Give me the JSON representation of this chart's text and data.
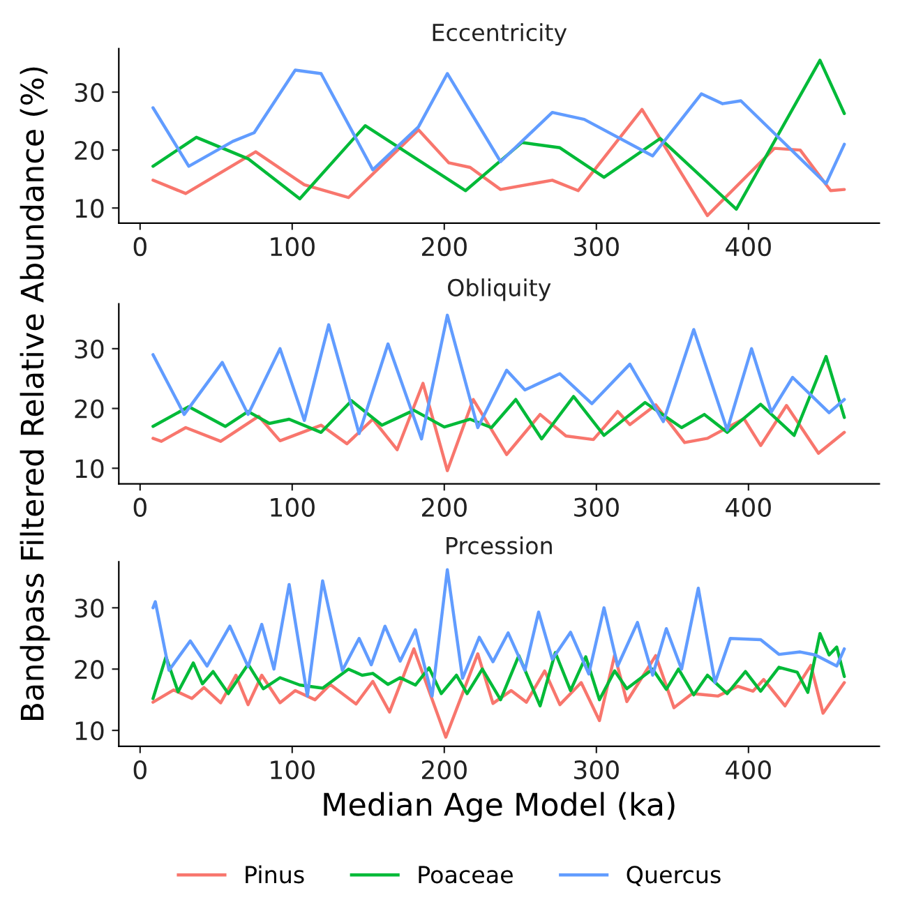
{
  "chart_data": [
    {
      "type": "line",
      "title": "Eccentricity",
      "xlim": [
        -14,
        486
      ],
      "ylim": [
        7.4,
        37.5
      ],
      "xticks": [
        0,
        100,
        200,
        300,
        400
      ],
      "yticks": [
        10,
        20,
        30
      ],
      "grid": false,
      "legend": "bottom",
      "series": [
        {
          "name": "Pinus",
          "color": "#f8766d",
          "x": [
            8.5,
            30,
            76,
            108,
            137,
            183,
            203,
            217,
            237,
            271,
            288,
            330,
            373,
            417,
            434,
            454,
            463
          ],
          "values": [
            14.8,
            12.5,
            19.7,
            14,
            11.8,
            23.5,
            17.8,
            17,
            13.2,
            14.8,
            13,
            27,
            8.7,
            20.3,
            20,
            13,
            13.2
          ]
        },
        {
          "name": "Poaceae",
          "color": "#00ba38",
          "x": [
            8.5,
            37,
            71,
            105,
            148,
            214,
            251,
            276,
            305,
            342,
            392,
            447,
            463
          ],
          "values": [
            17.2,
            22.2,
            18.5,
            11.6,
            24.2,
            13,
            21.3,
            20.4,
            15.3,
            22,
            9.8,
            35.5,
            26.3
          ]
        },
        {
          "name": "Quercus",
          "color": "#619cff",
          "x": [
            8.5,
            32,
            61,
            75,
            102,
            119,
            153,
            183,
            202,
            237,
            271,
            292,
            337,
            369,
            383,
            395,
            451,
            463
          ],
          "values": [
            27.3,
            17.2,
            21.5,
            23,
            33.8,
            33.2,
            16.6,
            24,
            33.2,
            18,
            26.5,
            25.3,
            19,
            29.7,
            28,
            28.5,
            14.2,
            21
          ]
        }
      ]
    },
    {
      "type": "line",
      "title": "Obliquity",
      "ylabel": "Bandpass Filtered Relative Abundance (%)",
      "xlim": [
        -14,
        486
      ],
      "ylim": [
        7.4,
        37.5
      ],
      "xticks": [
        0,
        100,
        200,
        300,
        400
      ],
      "yticks": [
        10,
        20,
        30
      ],
      "grid": false,
      "legend": "bottom",
      "series": [
        {
          "name": "Pinus",
          "color": "#f8766d",
          "x": [
            8.5,
            14,
            30,
            53,
            78,
            92,
            119,
            136,
            153,
            169,
            186,
            202,
            219,
            241,
            263,
            280,
            298,
            314,
            322,
            339,
            358,
            373,
            397,
            408,
            425,
            446,
            463
          ],
          "values": [
            15,
            14.5,
            16.8,
            14.5,
            18.7,
            14.6,
            17.2,
            14.1,
            18.2,
            13.1,
            24.2,
            9.6,
            21.5,
            12.3,
            19,
            15.4,
            14.8,
            19.5,
            17.3,
            20.6,
            14.3,
            15,
            18.3,
            13.8,
            20.5,
            12.5,
            16
          ]
        },
        {
          "name": "Poaceae",
          "color": "#00ba38",
          "x": [
            8.5,
            32,
            56,
            71,
            85,
            98,
            119,
            139,
            159,
            180,
            200,
            217,
            231,
            247,
            264,
            285,
            305,
            332,
            356,
            371,
            386,
            408,
            430,
            451,
            463
          ],
          "values": [
            17,
            20.3,
            17,
            19.5,
            17.5,
            18.2,
            16,
            21.3,
            17.2,
            19.7,
            16.9,
            18.2,
            16.8,
            21.5,
            14.9,
            22,
            15.5,
            21,
            16.8,
            19,
            16,
            20.7,
            15.5,
            28.7,
            18.5
          ]
        },
        {
          "name": "Quercus",
          "color": "#619cff",
          "x": [
            8.5,
            29,
            54,
            71,
            92,
            108,
            124,
            144,
            163,
            185,
            202,
            222,
            241,
            253,
            276,
            297,
            322,
            344,
            364,
            386,
            402,
            415,
            429,
            453,
            463
          ],
          "values": [
            29,
            19,
            27.7,
            19,
            30,
            18,
            34,
            15.8,
            30.8,
            14.9,
            35.6,
            16.8,
            26.4,
            23.1,
            25.8,
            20.8,
            27.4,
            17.8,
            33.2,
            16.4,
            30,
            19.4,
            25.2,
            19.3,
            21.5
          ]
        }
      ]
    },
    {
      "type": "line",
      "title": "Prcession",
      "xlabel": "Median Age Model (ka)",
      "xlim": [
        -14,
        486
      ],
      "ylim": [
        7.4,
        37.5
      ],
      "xticks": [
        0,
        100,
        200,
        300,
        400
      ],
      "yticks": [
        10,
        20,
        30
      ],
      "grid": false,
      "legend": "bottom",
      "series": [
        {
          "name": "Pinus",
          "color": "#f8766d",
          "x": [
            8.5,
            22,
            34,
            42,
            53,
            63,
            71,
            80,
            92,
            102,
            115,
            125,
            142,
            153,
            164,
            180,
            201,
            222,
            232,
            244,
            254,
            266,
            276,
            290,
            302,
            312,
            320,
            339,
            351,
            363,
            380,
            393,
            403,
            410,
            424,
            441,
            449,
            463
          ],
          "values": [
            14.6,
            16.6,
            15.2,
            17,
            14.5,
            19,
            14.2,
            19,
            14.5,
            16.5,
            15,
            17.5,
            14.3,
            18,
            13,
            23.3,
            8.9,
            22.5,
            14.4,
            16.5,
            14.6,
            19.7,
            14.2,
            17.8,
            11.6,
            22.3,
            14.7,
            22.2,
            13.7,
            16,
            15.6,
            17.2,
            16.4,
            18.3,
            14,
            20.6,
            12.8,
            17.8
          ]
        },
        {
          "name": "Poaceae",
          "color": "#00ba38",
          "x": [
            8.5,
            17,
            25,
            35,
            41,
            48,
            58,
            71,
            81,
            92,
            105,
            120,
            137,
            146,
            153,
            163,
            171,
            181,
            190,
            198,
            208,
            215,
            225,
            237,
            249,
            263,
            273,
            283,
            293,
            302,
            312,
            320,
            337,
            346,
            354,
            364,
            373,
            386,
            398,
            408,
            420,
            432,
            439,
            447,
            453,
            458,
            463
          ],
          "values": [
            15.2,
            22,
            16.3,
            21,
            17.6,
            19.6,
            16,
            20.8,
            16.8,
            18.6,
            17.4,
            16.9,
            20,
            19,
            19.3,
            17.5,
            18.6,
            17.4,
            20.2,
            16,
            19,
            16,
            20,
            15,
            22.2,
            14,
            22.7,
            16.5,
            22,
            15,
            19.7,
            16.8,
            20,
            16.7,
            20,
            15.8,
            19,
            16,
            19.6,
            16.4,
            20.3,
            19.5,
            16.2,
            25.8,
            22.3,
            23.6,
            18.8
          ]
        },
        {
          "name": "Quercus",
          "color": "#619cff",
          "x": [
            8.5,
            10,
            19,
            33,
            44,
            59,
            71,
            80,
            88,
            98,
            110,
            120,
            133,
            144,
            152,
            161,
            171,
            181,
            192,
            202,
            212,
            223,
            232,
            242,
            253,
            262,
            271,
            283,
            295,
            305,
            314,
            327,
            337,
            346,
            356,
            367,
            378,
            388,
            408,
            420,
            434,
            444,
            458,
            463
          ],
          "values": [
            30,
            31,
            19.8,
            24.6,
            20.5,
            27,
            20.4,
            27.3,
            20,
            33.8,
            15.6,
            34.4,
            19.8,
            25,
            20.7,
            27,
            21.3,
            26.4,
            15.6,
            36.2,
            18.5,
            25.2,
            21.2,
            25.9,
            19.8,
            29.3,
            21.6,
            26,
            19.2,
            30,
            20.5,
            27.6,
            19,
            26.6,
            20,
            33.2,
            17.8,
            25,
            24.8,
            22.4,
            22.8,
            22.3,
            20.5,
            23.3
          ]
        }
      ]
    }
  ]
}
